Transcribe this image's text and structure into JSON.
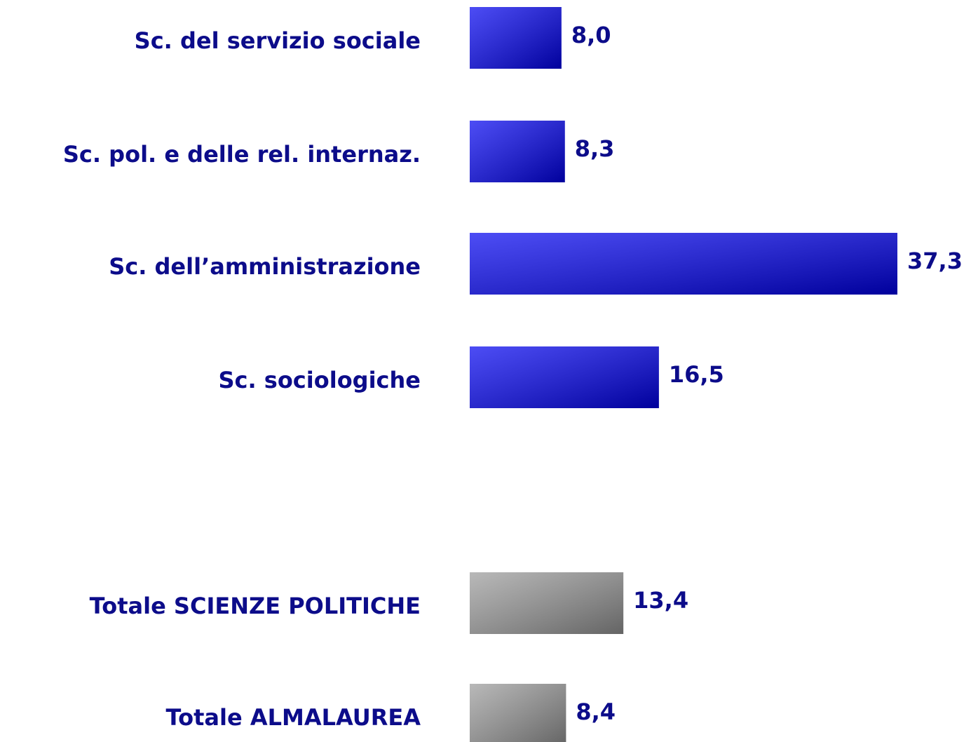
{
  "chart_data": {
    "type": "bar",
    "orientation": "horizontal",
    "categories": [
      "Sc. del servizio sociale",
      "Sc. pol. e delle rel. internaz.",
      "Sc. dell’amministrazione",
      "Sc. sociologiche",
      "Totale SCIENZE POLITICHE",
      "Totale ALMALAUREA"
    ],
    "values": [
      8.0,
      8.3,
      37.3,
      16.5,
      13.4,
      8.4
    ],
    "value_labels": [
      "8,0",
      "8,3",
      "37,3",
      "16,5",
      "13,4",
      "8,4"
    ],
    "colors": [
      "#0000f0",
      "#0000f0",
      "#0000f0",
      "#0000f0",
      "#9a9a9a",
      "#9a9a9a"
    ]
  }
}
